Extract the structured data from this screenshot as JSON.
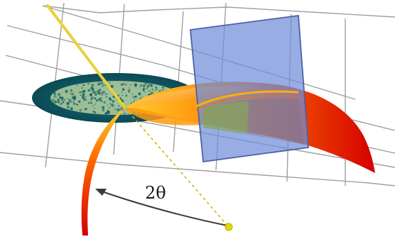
{
  "diagram": {
    "angle_label": "2θ",
    "colors": {
      "grid": "#9a9a9a",
      "beam": "#e6d23a",
      "sample_fill": "#0d5a66",
      "sample_speckle": "#d9e8a8",
      "cone_dark": "#d60000",
      "cone_mid": "#f23a00",
      "cone_light": "#ffcf2a",
      "detector_fill": "#6f8ed8",
      "detector_stroke": "#4c62a6",
      "ring": "#ffb000",
      "arrow": "#3a3a3a",
      "guide": "#d6b700"
    }
  }
}
